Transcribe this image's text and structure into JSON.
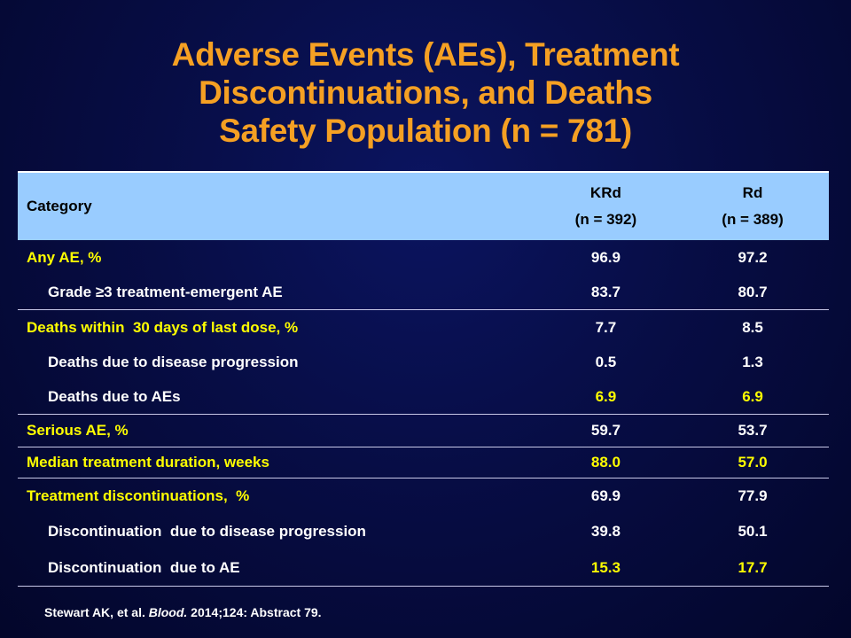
{
  "title": {
    "line1": "Adverse Events (AEs), Treatment",
    "line2": "Discontinuations, and Deaths",
    "line3": "Safety Population (n = 781)"
  },
  "table": {
    "header": {
      "category": "Category",
      "col1_name": "KRd",
      "col1_n": "(n = 392)",
      "col2_name": "Rd",
      "col2_n": "(n = 389)"
    },
    "rows": [
      {
        "label": "Any AE, %",
        "krd": "96.9",
        "rd": "97.2"
      },
      {
        "label": "Grade ≥3 treatment-emergent AE",
        "krd": "83.7",
        "rd": "80.7"
      },
      {
        "label": "Deaths within  30 days of last dose, %",
        "krd": "7.7",
        "rd": "8.5"
      },
      {
        "label": "Deaths due to disease progression",
        "krd": "0.5",
        "rd": "1.3"
      },
      {
        "label": "Deaths due to AEs",
        "krd": "6.9",
        "rd": "6.9"
      },
      {
        "label": "Serious AE, %",
        "krd": "59.7",
        "rd": "53.7"
      },
      {
        "label": "Median treatment duration, weeks",
        "krd": "88.0",
        "rd": "57.0"
      },
      {
        "label": "Treatment discontinuations,  %",
        "krd": "69.9",
        "rd": "77.9"
      },
      {
        "label": "Discontinuation  due to disease progression",
        "krd": "39.8",
        "rd": "50.1"
      },
      {
        "label": "Discontinuation  due to AE",
        "krd": "15.3",
        "rd": "17.7"
      }
    ]
  },
  "footer": {
    "authors": "Stewart AK, et al. ",
    "journal": "Blood.",
    "citation": " 2014;124: Abstract 79."
  },
  "colors": {
    "title": "#f5a023",
    "header_bg": "#99ccff",
    "highlight": "#ffff00",
    "text": "#ffffff"
  }
}
